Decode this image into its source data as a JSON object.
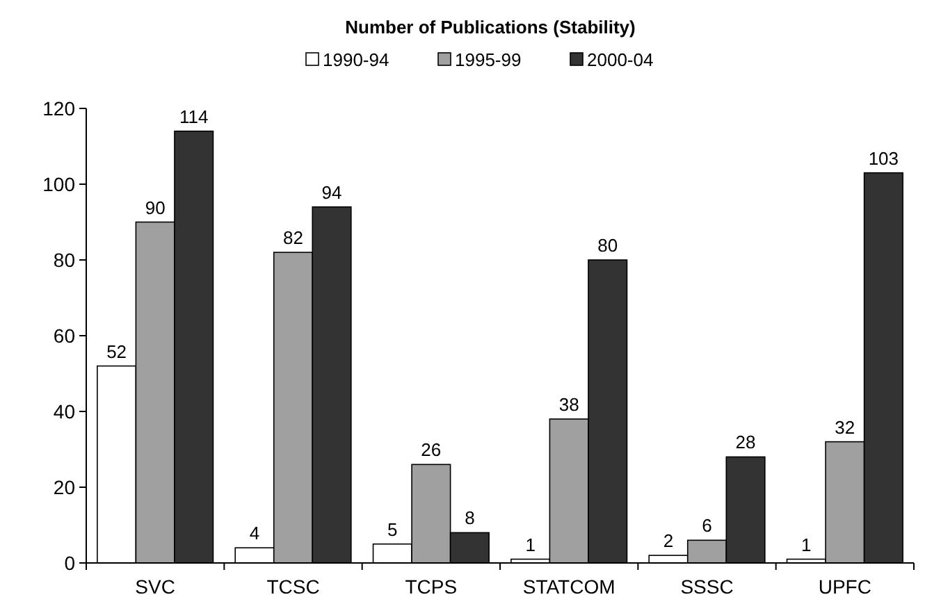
{
  "chart_data": {
    "type": "bar",
    "title": "Number of Publications (Stability)",
    "categories": [
      "SVC",
      "TCSC",
      "TCPS",
      "STATCOM",
      "SSSC",
      "UPFC"
    ],
    "series": [
      {
        "name": "1990-94",
        "color": "#ffffff",
        "values": [
          52,
          4,
          5,
          1,
          2,
          1
        ]
      },
      {
        "name": "1995-99",
        "color": "#a0a0a0",
        "values": [
          90,
          82,
          26,
          38,
          6,
          32
        ]
      },
      {
        "name": "2000-04",
        "color": "#333333",
        "values": [
          114,
          94,
          8,
          80,
          28,
          103
        ]
      }
    ],
    "ylim": [
      0,
      120
    ],
    "yticks": [
      0,
      20,
      40,
      60,
      80,
      100,
      120
    ],
    "grid": false,
    "legend": "top",
    "data_labels": true
  }
}
